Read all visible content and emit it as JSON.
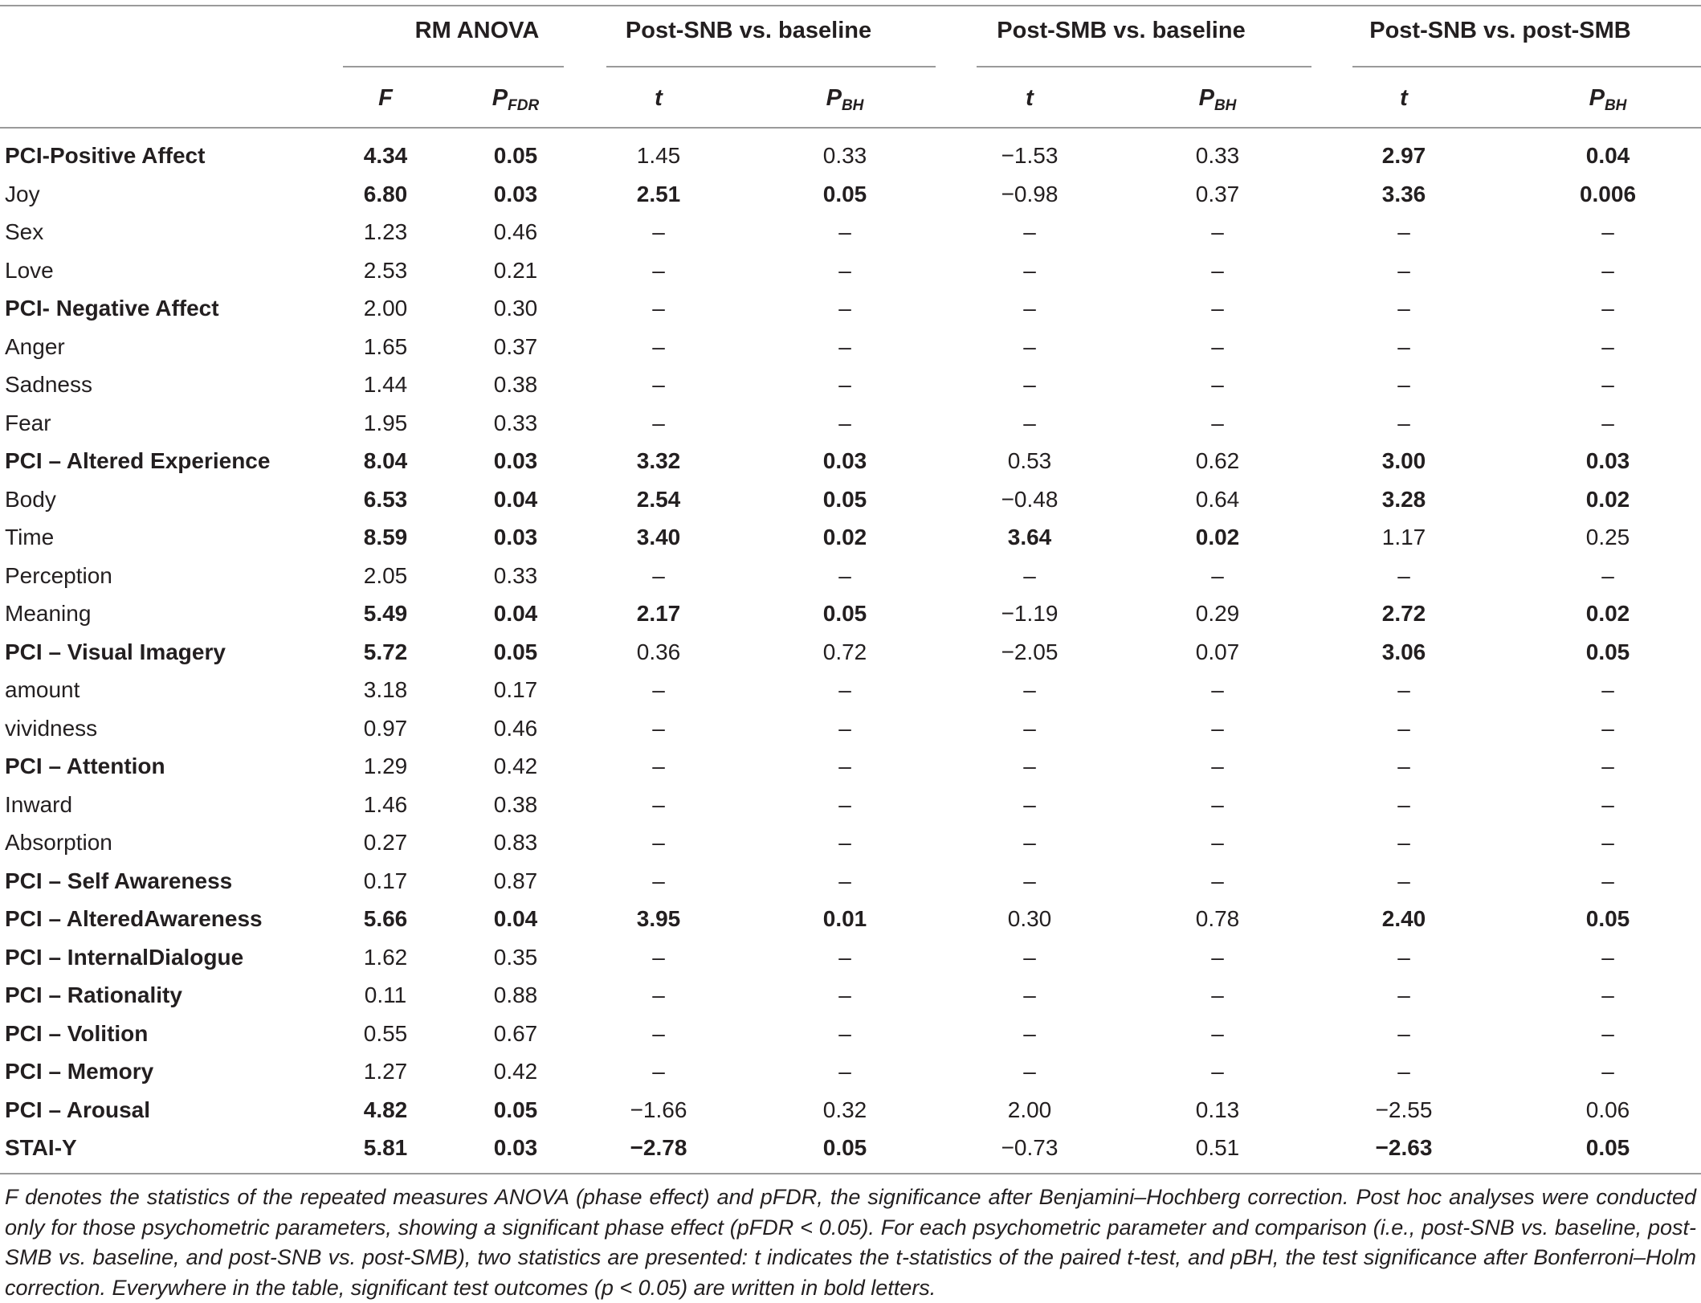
{
  "headers": {
    "groups": [
      "RM ANOVA",
      "Post-SNB vs. baseline",
      "Post-SMB vs. baseline",
      "Post-SNB vs. post-SMB"
    ],
    "sub": [
      {
        "main": "F",
        "sub": ""
      },
      {
        "main": "P",
        "sub": "FDR"
      },
      {
        "main": "t",
        "sub": ""
      },
      {
        "main": "P",
        "sub": "BH"
      },
      {
        "main": "t",
        "sub": ""
      },
      {
        "main": "P",
        "sub": "BH"
      },
      {
        "main": "t",
        "sub": ""
      },
      {
        "main": "P",
        "sub": "BH"
      }
    ]
  },
  "rows": [
    {
      "label": "PCI-Positive Affect",
      "label_bold": "PCI-Positive Affect",
      "label_rest": "",
      "cells": [
        [
          "4.34",
          1
        ],
        [
          "0.05",
          1
        ],
        [
          "1.45",
          0
        ],
        [
          "0.33",
          0
        ],
        [
          "−1.53",
          0
        ],
        [
          "0.33",
          0
        ],
        [
          "2.97",
          1
        ],
        [
          "0.04",
          1
        ]
      ]
    },
    {
      "label": "Joy",
      "label_bold": "",
      "label_rest": "Joy",
      "cells": [
        [
          "6.80",
          1
        ],
        [
          "0.03",
          1
        ],
        [
          "2.51",
          1
        ],
        [
          "0.05",
          1
        ],
        [
          "−0.98",
          0
        ],
        [
          "0.37",
          0
        ],
        [
          "3.36",
          1
        ],
        [
          "0.006",
          1
        ]
      ]
    },
    {
      "label": "Sex",
      "label_bold": "",
      "label_rest": "Sex",
      "cells": [
        [
          "1.23",
          0
        ],
        [
          "0.46",
          0
        ],
        [
          "–",
          0
        ],
        [
          "–",
          0
        ],
        [
          "–",
          0
        ],
        [
          "–",
          0
        ],
        [
          "–",
          0
        ],
        [
          "–",
          0
        ]
      ]
    },
    {
      "label": "Love",
      "label_bold": "",
      "label_rest": "Love",
      "cells": [
        [
          "2.53",
          0
        ],
        [
          "0.21",
          0
        ],
        [
          "–",
          0
        ],
        [
          "–",
          0
        ],
        [
          "–",
          0
        ],
        [
          "–",
          0
        ],
        [
          "–",
          0
        ],
        [
          "–",
          0
        ]
      ]
    },
    {
      "label": "PCI- Negative Affect",
      "label_bold": "PCI- Negative Affect",
      "label_rest": "",
      "cells": [
        [
          "2.00",
          0
        ],
        [
          "0.30",
          0
        ],
        [
          "–",
          0
        ],
        [
          "–",
          0
        ],
        [
          "–",
          0
        ],
        [
          "–",
          0
        ],
        [
          "–",
          0
        ],
        [
          "–",
          0
        ]
      ]
    },
    {
      "label": "Anger",
      "label_bold": "",
      "label_rest": "Anger",
      "cells": [
        [
          "1.65",
          0
        ],
        [
          "0.37",
          0
        ],
        [
          "–",
          0
        ],
        [
          "–",
          0
        ],
        [
          "–",
          0
        ],
        [
          "–",
          0
        ],
        [
          "–",
          0
        ],
        [
          "–",
          0
        ]
      ]
    },
    {
      "label": "Sadness",
      "label_bold": "",
      "label_rest": "Sadness",
      "cells": [
        [
          "1.44",
          0
        ],
        [
          "0.38",
          0
        ],
        [
          "–",
          0
        ],
        [
          "–",
          0
        ],
        [
          "–",
          0
        ],
        [
          "–",
          0
        ],
        [
          "–",
          0
        ],
        [
          "–",
          0
        ]
      ]
    },
    {
      "label": "Fear",
      "label_bold": "",
      "label_rest": "Fear",
      "cells": [
        [
          "1.95",
          0
        ],
        [
          "0.33",
          0
        ],
        [
          "–",
          0
        ],
        [
          "–",
          0
        ],
        [
          "–",
          0
        ],
        [
          "–",
          0
        ],
        [
          "–",
          0
        ],
        [
          "–",
          0
        ]
      ]
    },
    {
      "label": "PCI – Altered Experience",
      "label_bold": "PCI – Altered Experience",
      "label_rest": "",
      "cells": [
        [
          "8.04",
          1
        ],
        [
          "0.03",
          1
        ],
        [
          "3.32",
          1
        ],
        [
          "0.03",
          1
        ],
        [
          "0.53",
          0
        ],
        [
          "0.62",
          0
        ],
        [
          "3.00",
          1
        ],
        [
          "0.03",
          1
        ]
      ]
    },
    {
      "label": "Body",
      "label_bold": "",
      "label_rest": "Body",
      "cells": [
        [
          "6.53",
          1
        ],
        [
          "0.04",
          1
        ],
        [
          "2.54",
          1
        ],
        [
          "0.05",
          1
        ],
        [
          "−0.48",
          0
        ],
        [
          "0.64",
          0
        ],
        [
          "3.28",
          1
        ],
        [
          "0.02",
          1
        ]
      ]
    },
    {
      "label": "Time",
      "label_bold": "",
      "label_rest": "Time",
      "cells": [
        [
          "8.59",
          1
        ],
        [
          "0.03",
          1
        ],
        [
          "3.40",
          1
        ],
        [
          "0.02",
          1
        ],
        [
          "3.64",
          1
        ],
        [
          "0.02",
          1
        ],
        [
          "1.17",
          0
        ],
        [
          "0.25",
          0
        ]
      ]
    },
    {
      "label": "Perception",
      "label_bold": "",
      "label_rest": "Perception",
      "cells": [
        [
          "2.05",
          0
        ],
        [
          "0.33",
          0
        ],
        [
          "–",
          0
        ],
        [
          "–",
          0
        ],
        [
          "–",
          0
        ],
        [
          "–",
          0
        ],
        [
          "–",
          0
        ],
        [
          "–",
          0
        ]
      ]
    },
    {
      "label": "Meaning",
      "label_bold": "",
      "label_rest": "Meaning",
      "cells": [
        [
          "5.49",
          1
        ],
        [
          "0.04",
          1
        ],
        [
          "2.17",
          1
        ],
        [
          "0.05",
          1
        ],
        [
          "−1.19",
          0
        ],
        [
          "0.29",
          0
        ],
        [
          "2.72",
          1
        ],
        [
          "0.02",
          1
        ]
      ]
    },
    {
      "label": "PCI – Visual Imagery",
      "label_bold": "PCI – Visual Imagery",
      "label_rest": "",
      "cells": [
        [
          "5.72",
          1
        ],
        [
          "0.05",
          1
        ],
        [
          "0.36",
          0
        ],
        [
          "0.72",
          0
        ],
        [
          "−2.05",
          0
        ],
        [
          "0.07",
          0
        ],
        [
          "3.06",
          1
        ],
        [
          "0.05",
          1
        ]
      ]
    },
    {
      "label": "amount",
      "label_bold": "",
      "label_rest": "amount",
      "cells": [
        [
          "3.18",
          0
        ],
        [
          "0.17",
          0
        ],
        [
          "–",
          0
        ],
        [
          "–",
          0
        ],
        [
          "–",
          0
        ],
        [
          "–",
          0
        ],
        [
          "–",
          0
        ],
        [
          "–",
          0
        ]
      ]
    },
    {
      "label": "vividness",
      "label_bold": "",
      "label_rest": "vividness",
      "cells": [
        [
          "0.97",
          0
        ],
        [
          "0.46",
          0
        ],
        [
          "–",
          0
        ],
        [
          "–",
          0
        ],
        [
          "–",
          0
        ],
        [
          "–",
          0
        ],
        [
          "–",
          0
        ],
        [
          "–",
          0
        ]
      ]
    },
    {
      "label": "PCI – Attention",
      "label_bold": "PCI – Attention",
      "label_rest": "",
      "cells": [
        [
          "1.29",
          0
        ],
        [
          "0.42",
          0
        ],
        [
          "–",
          0
        ],
        [
          "–",
          0
        ],
        [
          "–",
          0
        ],
        [
          "–",
          0
        ],
        [
          "–",
          0
        ],
        [
          "–",
          0
        ]
      ]
    },
    {
      "label": "Inward",
      "label_bold": "",
      "label_rest": "Inward",
      "cells": [
        [
          "1.46",
          0
        ],
        [
          "0.38",
          0
        ],
        [
          "–",
          0
        ],
        [
          "–",
          0
        ],
        [
          "–",
          0
        ],
        [
          "–",
          0
        ],
        [
          "–",
          0
        ],
        [
          "–",
          0
        ]
      ]
    },
    {
      "label": "Absorption",
      "label_bold": "",
      "label_rest": "Absorption",
      "cells": [
        [
          "0.27",
          0
        ],
        [
          "0.83",
          0
        ],
        [
          "–",
          0
        ],
        [
          "–",
          0
        ],
        [
          "–",
          0
        ],
        [
          "–",
          0
        ],
        [
          "–",
          0
        ],
        [
          "–",
          0
        ]
      ]
    },
    {
      "label": "PCI – Self Awareness",
      "label_bold": "PCI – Self Awareness",
      "label_rest": "",
      "cells": [
        [
          "0.17",
          0
        ],
        [
          "0.87",
          0
        ],
        [
          "–",
          0
        ],
        [
          "–",
          0
        ],
        [
          "–",
          0
        ],
        [
          "–",
          0
        ],
        [
          "–",
          0
        ],
        [
          "–",
          0
        ]
      ]
    },
    {
      "label": "PCI – AlteredAwareness",
      "label_bold": "PCI – AlteredAwareness",
      "label_rest": "",
      "cells": [
        [
          "5.66",
          1
        ],
        [
          "0.04",
          1
        ],
        [
          "3.95",
          1
        ],
        [
          "0.01",
          1
        ],
        [
          "0.30",
          0
        ],
        [
          "0.78",
          0
        ],
        [
          "2.40",
          1
        ],
        [
          "0.05",
          1
        ]
      ]
    },
    {
      "label": "PCI – InternalDialogue",
      "label_bold": "PCI – InternalDialogue",
      "label_rest": "",
      "cells": [
        [
          "1.62",
          0
        ],
        [
          "0.35",
          0
        ],
        [
          "–",
          0
        ],
        [
          "–",
          0
        ],
        [
          "–",
          0
        ],
        [
          "–",
          0
        ],
        [
          "–",
          0
        ],
        [
          "–",
          0
        ]
      ]
    },
    {
      "label": "PCI – Rationality",
      "label_bold": "PCI – Rationality",
      "label_rest": "",
      "cells": [
        [
          "0.11",
          0
        ],
        [
          "0.88",
          0
        ],
        [
          "–",
          0
        ],
        [
          "–",
          0
        ],
        [
          "–",
          0
        ],
        [
          "–",
          0
        ],
        [
          "–",
          0
        ],
        [
          "–",
          0
        ]
      ]
    },
    {
      "label": "PCI – Volition",
      "label_bold": "PCI – Volition",
      "label_rest": "",
      "cells": [
        [
          "0.55",
          0
        ],
        [
          "0.67",
          0
        ],
        [
          "–",
          0
        ],
        [
          "–",
          0
        ],
        [
          "–",
          0
        ],
        [
          "–",
          0
        ],
        [
          "–",
          0
        ],
        [
          "–",
          0
        ]
      ]
    },
    {
      "label": "PCI – Memory",
      "label_bold": "PCI – Memory",
      "label_rest": "",
      "cells": [
        [
          "1.27",
          0
        ],
        [
          "0.42",
          0
        ],
        [
          "–",
          0
        ],
        [
          "–",
          0
        ],
        [
          "–",
          0
        ],
        [
          "–",
          0
        ],
        [
          "–",
          0
        ],
        [
          "–",
          0
        ]
      ]
    },
    {
      "label": "PCI – Arousal",
      "label_bold": "PCI – Arousal",
      "label_rest": "",
      "cells": [
        [
          "4.82",
          1
        ],
        [
          "0.05",
          1
        ],
        [
          "−1.66",
          0
        ],
        [
          "0.32",
          0
        ],
        [
          "2.00",
          0
        ],
        [
          "0.13",
          0
        ],
        [
          "−2.55",
          0
        ],
        [
          "0.06",
          0
        ]
      ]
    },
    {
      "label": "STAI-Y",
      "label_bold": "STAI-Y",
      "label_rest": "",
      "cells": [
        [
          "5.81",
          1
        ],
        [
          "0.03",
          1
        ],
        [
          "−2.78",
          1
        ],
        [
          "0.05",
          1
        ],
        [
          "−0.73",
          0
        ],
        [
          "0.51",
          0
        ],
        [
          "−2.63",
          1
        ],
        [
          "0.05",
          1
        ]
      ]
    }
  ],
  "footnote": "F denotes the statistics of the repeated measures ANOVA (phase effect) and pFDR, the significance after Benjamini–Hochberg correction. Post hoc analyses were conducted only for those psychometric parameters, showing a significant phase effect (pFDR < 0.05). For each psychometric parameter and comparison (i.e., post-SNB vs. baseline, post-SMB vs. baseline, and post-SNB vs. post-SMB), two statistics are presented: t indicates the t-statistics of the paired t-test, and pBH, the test significance after Bonferroni–Holm correction. Everywhere in the table, significant test outcomes (p < 0.05) are written in bold letters."
}
